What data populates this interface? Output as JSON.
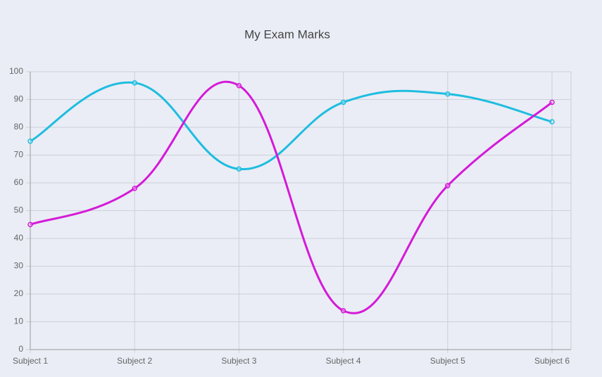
{
  "chart_data": {
    "type": "line",
    "title": "My Exam Marks",
    "categories": [
      "Subject 1",
      "Subject 2",
      "Subject 3",
      "Subject 4",
      "Subject 5",
      "Subject 6"
    ],
    "series": [
      {
        "color": "#1ebde0",
        "values": [
          75,
          96,
          65,
          89,
          92,
          82
        ]
      },
      {
        "color": "#d41ad8",
        "values": [
          45,
          58,
          95,
          14,
          59,
          89
        ]
      }
    ],
    "ylim": [
      0,
      100
    ],
    "yticks": [
      0,
      10,
      20,
      30,
      40,
      50,
      60,
      70,
      80,
      90,
      100
    ],
    "grid": true
  }
}
